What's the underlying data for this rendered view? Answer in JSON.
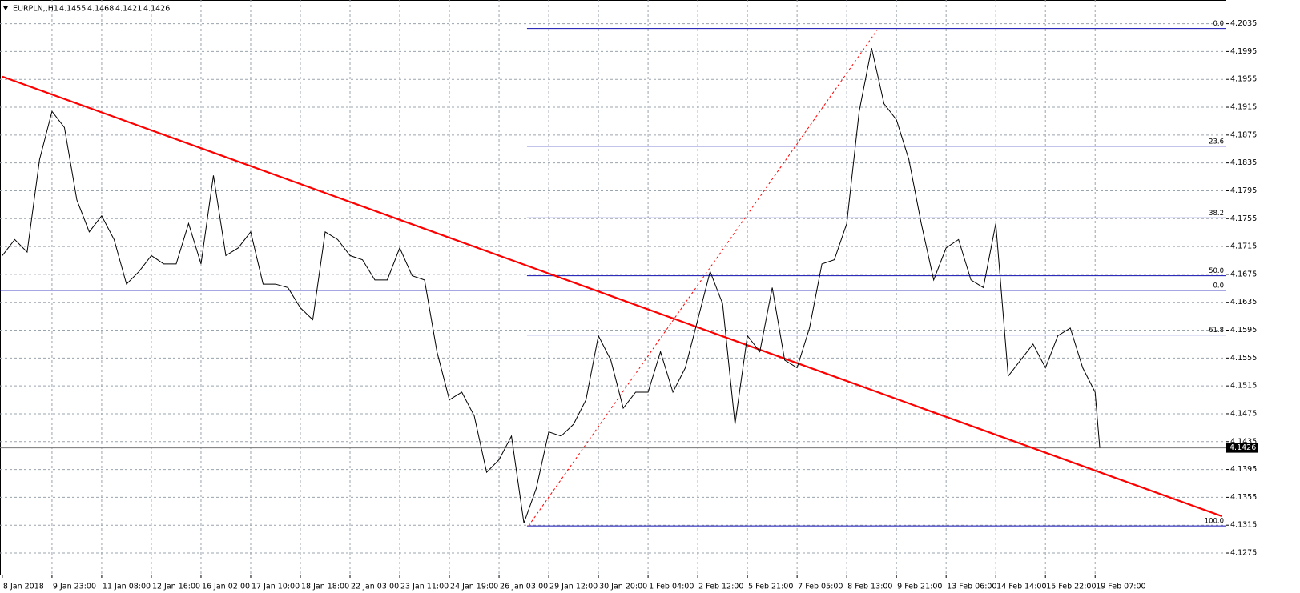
{
  "chart_data": {
    "type": "line",
    "symbol": "EURPLN,,H1",
    "ohlc": [
      4.1455,
      4.1468,
      4.1421,
      4.1426
    ],
    "color": "#000000",
    "x": [
      0,
      8,
      16,
      24,
      32,
      40,
      48,
      56,
      64,
      72,
      80,
      88,
      96,
      104,
      112,
      120,
      128,
      136,
      144,
      152,
      160,
      168,
      176,
      184,
      192,
      200,
      208,
      216,
      224,
      232,
      240,
      248,
      256,
      264,
      272,
      280,
      288,
      296,
      304,
      312,
      320,
      328,
      336,
      344,
      352,
      360,
      368,
      376,
      384,
      392,
      400,
      408,
      416,
      424,
      432,
      440,
      448,
      456,
      464,
      472,
      480,
      488,
      496,
      504,
      512,
      520,
      528,
      536,
      544,
      552,
      560,
      568,
      576,
      584,
      592,
      600,
      608,
      616,
      624,
      632,
      640,
      648,
      656,
      664,
      672,
      680,
      688,
      696,
      704,
      707
    ],
    "values": [
      4.1702,
      4.1725,
      4.1707,
      4.184,
      4.1909,
      4.1886,
      4.1782,
      4.1736,
      4.1759,
      4.1725,
      4.1661,
      4.1679,
      4.1702,
      4.169,
      4.169,
      4.1748,
      4.169,
      4.1817,
      4.1702,
      4.1713,
      4.1736,
      4.1661,
      4.1661,
      4.1656,
      4.1627,
      4.161,
      4.1736,
      4.1725,
      4.1702,
      4.1696,
      4.1667,
      4.1667,
      4.1713,
      4.1673,
      4.1667,
      4.1564,
      4.1495,
      4.1506,
      4.1472,
      4.1391,
      4.1409,
      4.1443,
      4.1318,
      4.1368,
      4.1449,
      4.1443,
      4.146,
      4.1495,
      4.1587,
      4.1552,
      4.1483,
      4.1506,
      4.1506,
      4.1564,
      4.1506,
      4.1541,
      4.161,
      4.1679,
      4.1633,
      4.146,
      4.1587,
      4.1564,
      4.1656,
      4.1552,
      4.1541,
      4.1598,
      4.169,
      4.1696,
      4.1748,
      4.1909,
      4.2,
      4.192,
      4.1897,
      4.184,
      4.1748,
      4.1667,
      4.1713,
      4.1725,
      4.1667,
      4.1656,
      4.1748,
      4.1529,
      4.1552,
      4.1575,
      4.1541,
      4.1587,
      4.1598,
      4.1541,
      4.1506,
      4.1426
    ],
    "xlim": [
      -1.5,
      788
    ],
    "ylim": [
      4.1244,
      4.2069
    ],
    "yticks": [
      4.2035,
      4.1995,
      4.1955,
      4.1915,
      4.1875,
      4.1835,
      4.1795,
      4.1755,
      4.1715,
      4.1675,
      4.1635,
      4.1595,
      4.1555,
      4.1515,
      4.1475,
      4.1435,
      4.1395,
      4.1355,
      4.1315,
      4.1275
    ],
    "xticks": [
      {
        "value": 0,
        "label": "8 Jan 2018"
      },
      {
        "value": 32,
        "label": "9 Jan 23:00"
      },
      {
        "value": 64,
        "label": "11 Jan 08:00"
      },
      {
        "value": 96,
        "label": "12 Jan 16:00"
      },
      {
        "value": 128,
        "label": "16 Jan 02:00"
      },
      {
        "value": 160,
        "label": "17 Jan 10:00"
      },
      {
        "value": 192,
        "label": "18 Jan 18:00"
      },
      {
        "value": 224,
        "label": "22 Jan 03:00"
      },
      {
        "value": 256,
        "label": "23 Jan 11:00"
      },
      {
        "value": 288,
        "label": "24 Jan 19:00"
      },
      {
        "value": 320,
        "label": "26 Jan 03:00"
      },
      {
        "value": 352,
        "label": "29 Jan 12:00"
      },
      {
        "value": 384,
        "label": "30 Jan 20:00"
      },
      {
        "value": 416,
        "label": "1 Feb 04:00"
      },
      {
        "value": 448,
        "label": "2 Feb 12:00"
      },
      {
        "value": 480,
        "label": "5 Feb 21:00"
      },
      {
        "value": 512,
        "label": "7 Feb 05:00"
      },
      {
        "value": 544,
        "label": "8 Feb 13:00"
      },
      {
        "value": 576,
        "label": "9 Feb 21:00"
      },
      {
        "value": 608,
        "label": "13 Feb 06:00"
      },
      {
        "value": 640,
        "label": "14 Feb 14:00"
      },
      {
        "value": 672,
        "label": "15 Feb 22:00"
      },
      {
        "value": 704,
        "label": "19 Feb 07:00"
      }
    ],
    "grid": true,
    "last": 4.1426,
    "fibo": {
      "color": "#1010b0",
      "start": 338,
      "levels": [
        {
          "label": "0.0",
          "value": 4.2028
        },
        {
          "label": "23.6",
          "value": 4.1859
        },
        {
          "label": "38.2",
          "value": 4.1756
        },
        {
          "label": "50.0",
          "value": 4.1673
        },
        {
          "label": "61.8",
          "value": 4.1588
        },
        {
          "label": "100.0",
          "value": 4.1314
        }
      ]
    },
    "hlines": [
      {
        "label": "0.0",
        "value": 4.1652,
        "color": "#1010b0"
      }
    ],
    "trendlines": [
      {
        "color": "#ff0000",
        "style": "solid",
        "x": [
          0,
          785.5
        ],
        "y": [
          4.1959,
          4.1328
        ]
      },
      {
        "color": "#ff0000",
        "style": "dotted",
        "x": [
          339,
          563.6
        ],
        "y": [
          4.1314,
          4.2026
        ]
      }
    ]
  }
}
